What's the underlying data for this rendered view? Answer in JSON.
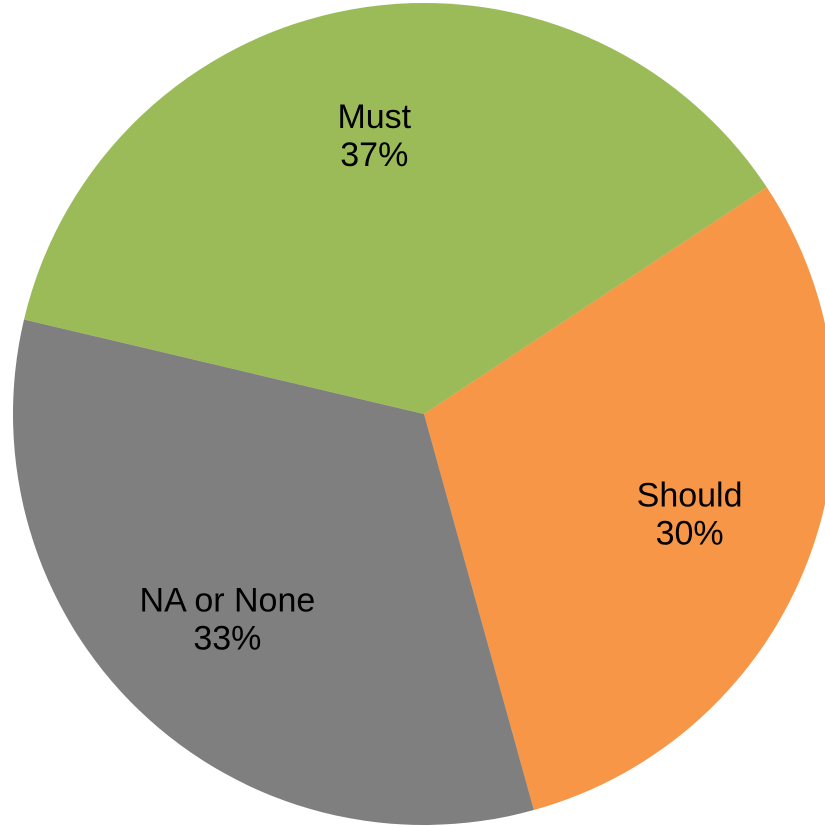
{
  "chart_data": {
    "type": "pie",
    "title": "",
    "slices": [
      {
        "name": "Should",
        "value": 30,
        "label": "30%",
        "color": "#F79646"
      },
      {
        "name": "NA or None",
        "value": 33,
        "label": "33%",
        "color": "#7F7F7F"
      },
      {
        "name": "Must",
        "value": 37,
        "label": "37%",
        "color": "#9BBB59"
      }
    ],
    "legend": "none",
    "data_labels": "category and percentage inside slices"
  }
}
